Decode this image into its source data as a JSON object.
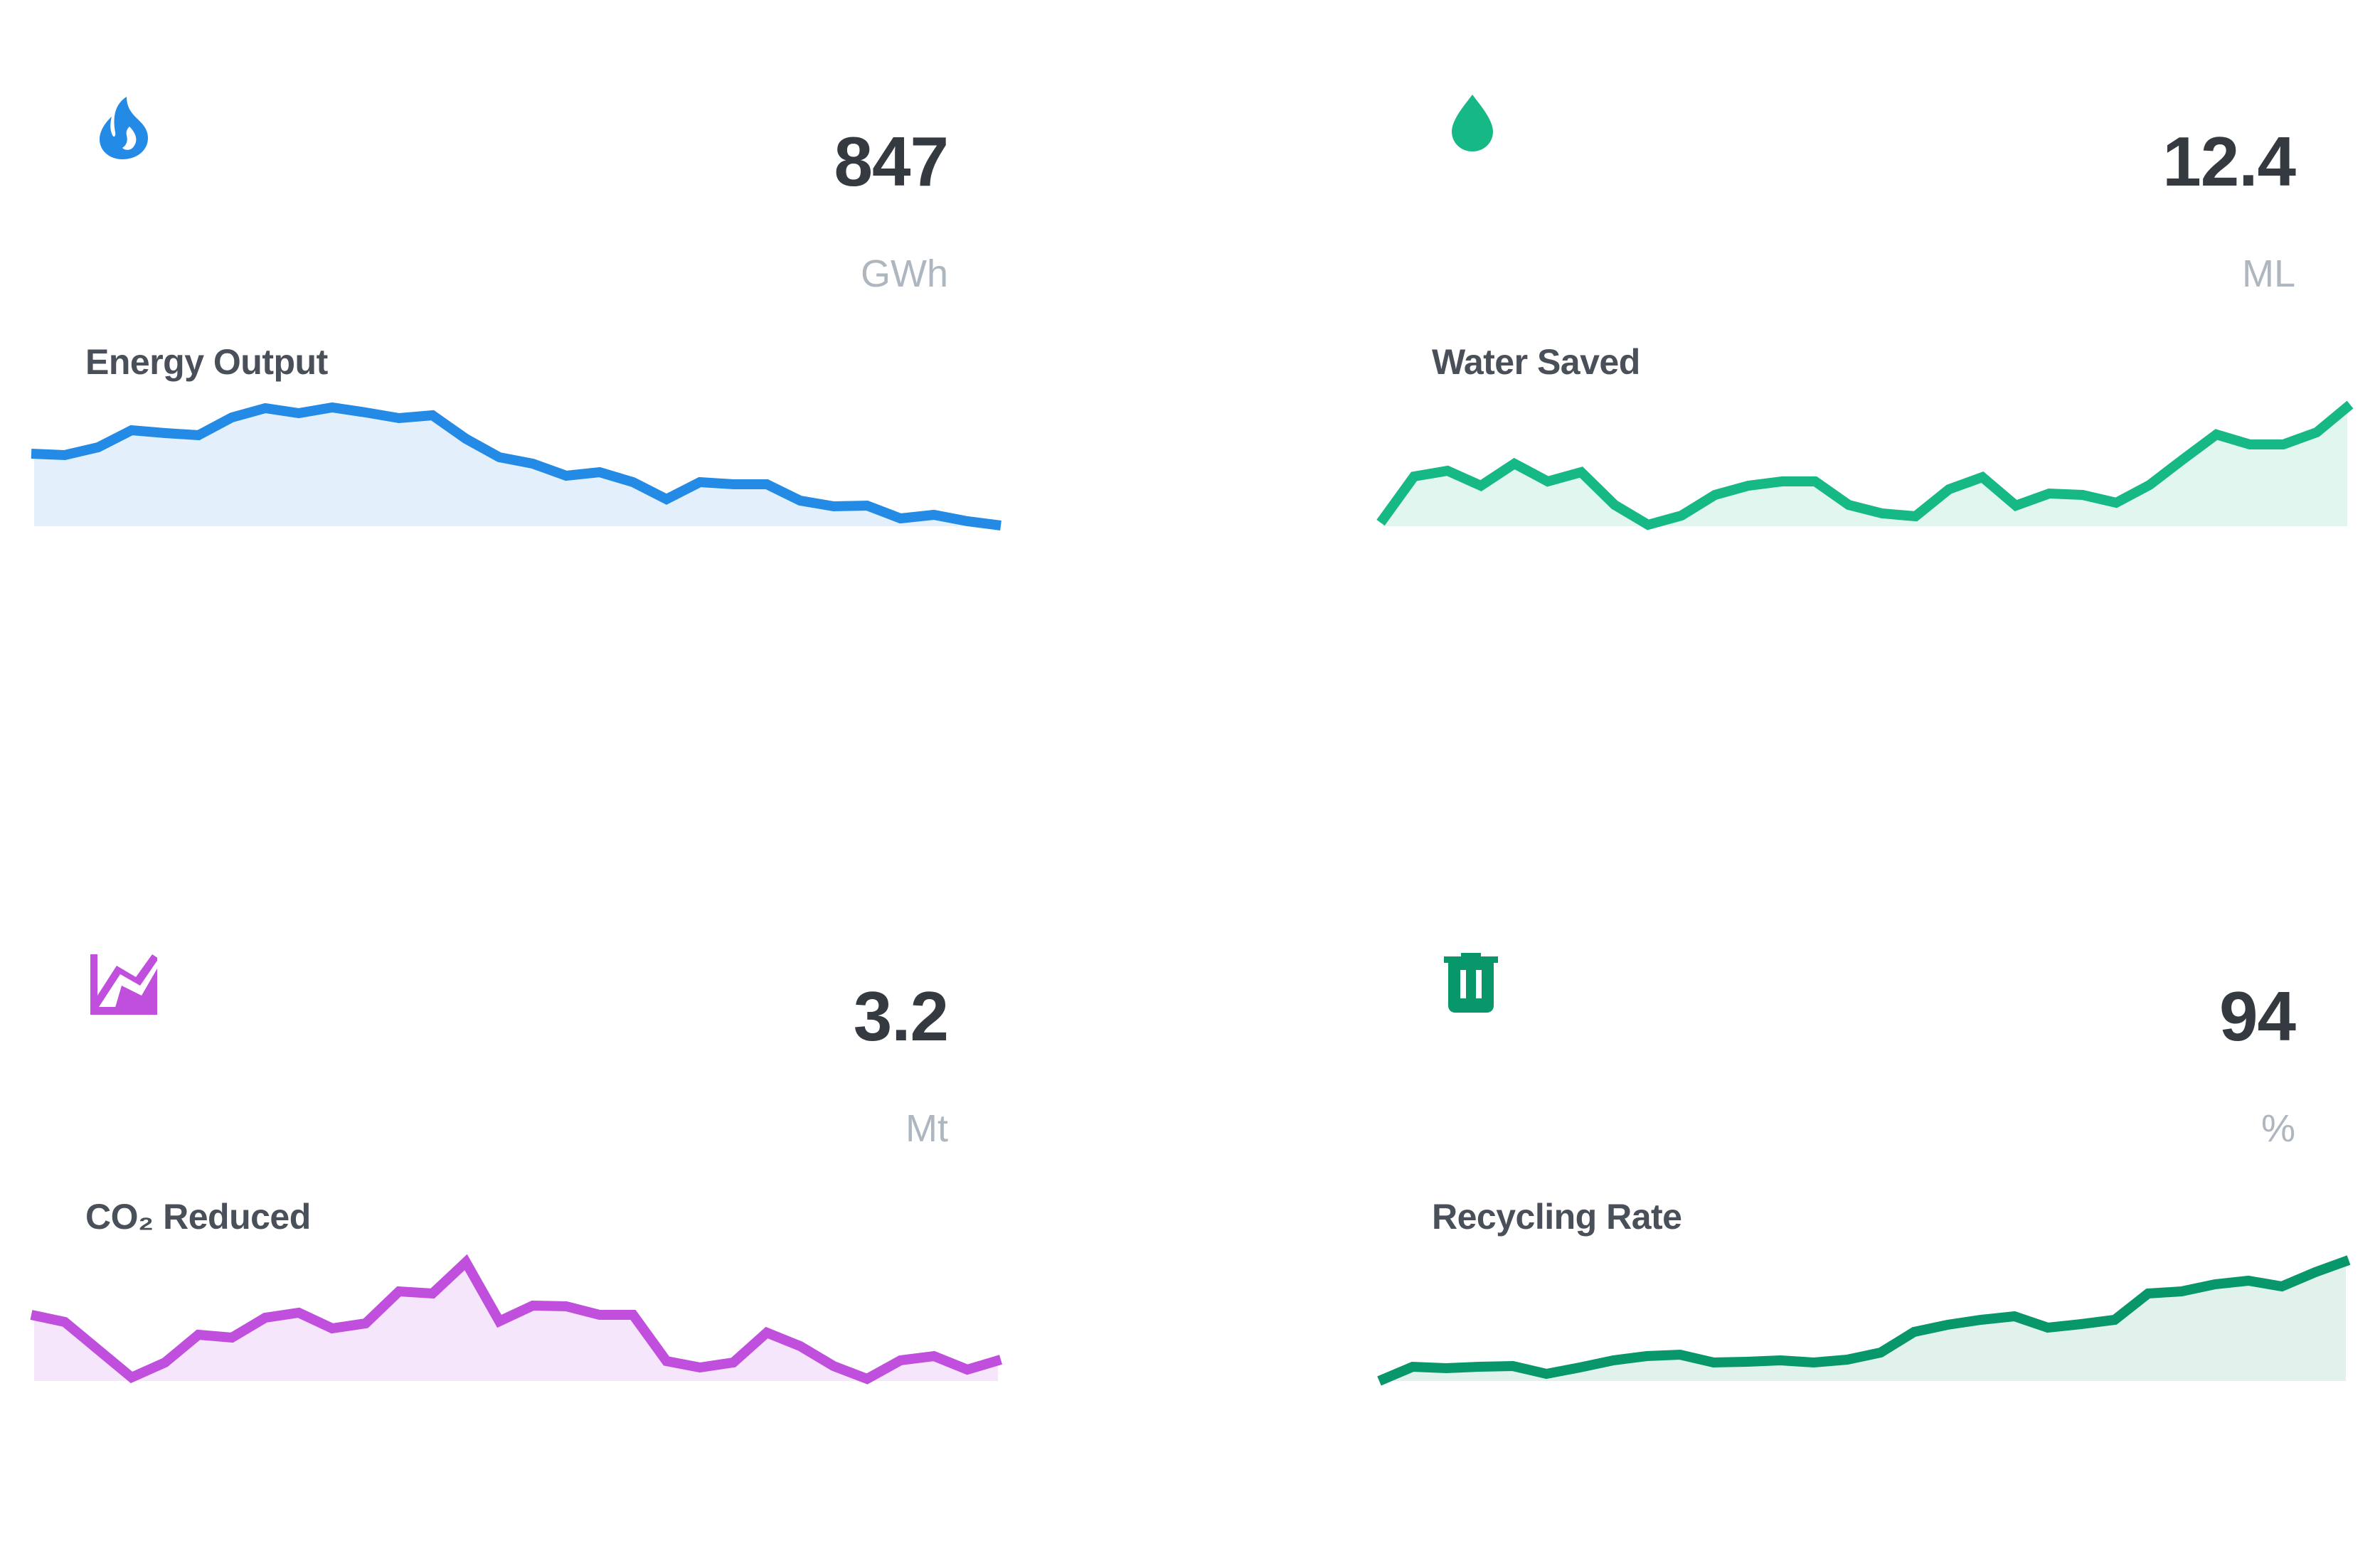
{
  "cards": [
    {
      "label": "Energy Output",
      "value": "847",
      "unit": "GWh",
      "icon": "flame-icon",
      "color": "#238be6",
      "fill": "#e3f0fc"
    },
    {
      "label": "Water Saved",
      "value": "12.4",
      "unit": "ML",
      "icon": "water-drop-icon",
      "color": "#16b886",
      "fill": "#e1f6ee"
    },
    {
      "label": "CO₂ Reduced",
      "value": "3.2",
      "unit": "Mt",
      "icon": "area-chart-icon",
      "color": "#bf4fdc",
      "fill": "#f6e6fb"
    },
    {
      "label": "Recycling Rate",
      "value": "94",
      "unit": "%",
      "icon": "trash-icon",
      "color": "#08976b",
      "fill": "#e0f2eb"
    }
  ],
  "chart_data": [
    {
      "type": "area",
      "title": "Energy Output",
      "value_label": "847 GWh",
      "x": [
        1,
        2,
        3,
        4,
        5,
        6,
        7,
        8,
        9,
        10,
        11,
        12,
        13,
        14,
        15,
        16,
        17,
        18,
        19,
        20,
        21,
        22,
        23,
        24,
        25,
        26,
        27,
        28,
        29,
        30
      ],
      "values": [
        102,
        100,
        111,
        135,
        131,
        128,
        153,
        166,
        159,
        167,
        160,
        152,
        156,
        123,
        97,
        88,
        71,
        76,
        62,
        38,
        62,
        59,
        59,
        36,
        28,
        29,
        11,
        16,
        7,
        1
      ],
      "xlabel": "",
      "ylabel": "",
      "grid": false,
      "legend": "none"
    },
    {
      "type": "area",
      "title": "Water Saved",
      "value_label": "12.4 ML",
      "x": [
        1,
        2,
        3,
        4,
        5,
        6,
        7,
        8,
        9,
        10,
        11,
        12,
        13,
        14,
        15,
        16,
        17,
        18,
        19,
        20,
        21,
        22,
        23,
        24,
        25,
        26,
        27,
        28,
        29,
        30
      ],
      "values": [
        5,
        70,
        78,
        57,
        88,
        63,
        76,
        30,
        2,
        15,
        44,
        57,
        63,
        63,
        30,
        18,
        14,
        52,
        69,
        29,
        46,
        44,
        33,
        58,
        94,
        129,
        115,
        115,
        132,
        171
      ],
      "xlabel": "",
      "ylabel": "",
      "grid": false,
      "legend": "none"
    },
    {
      "type": "area",
      "title": "CO₂ Reduced",
      "value_label": "3.2 Mt",
      "x": [
        1,
        2,
        3,
        4,
        5,
        6,
        7,
        8,
        9,
        10,
        11,
        12,
        13,
        14,
        15,
        16,
        17,
        18,
        19,
        20,
        21,
        22,
        23,
        24,
        25,
        26,
        27,
        28,
        29,
        30
      ],
      "values": [
        93,
        83,
        44,
        5,
        26,
        65,
        61,
        89,
        96,
        74,
        81,
        126,
        123,
        167,
        84,
        106,
        105,
        93,
        93,
        28,
        19,
        26,
        68,
        49,
        21,
        3,
        29,
        35,
        16,
        30
      ],
      "xlabel": "",
      "ylabel": "",
      "grid": false,
      "legend": "none"
    },
    {
      "type": "area",
      "title": "Recycling Rate",
      "value_label": "94 %",
      "x": [
        1,
        2,
        3,
        4,
        5,
        6,
        7,
        8,
        9,
        10,
        11,
        12,
        13,
        14,
        15,
        16,
        17,
        18,
        19,
        20,
        21,
        22,
        23,
        24,
        25,
        26,
        27,
        28,
        29,
        30
      ],
      "values": [
        0,
        20,
        18,
        20,
        21,
        10,
        19,
        29,
        35,
        37,
        26,
        27,
        29,
        26,
        30,
        40,
        69,
        79,
        86,
        91,
        75,
        80,
        86,
        123,
        126,
        136,
        141,
        133,
        153,
        170
      ],
      "xlabel": "",
      "ylabel": "",
      "grid": false,
      "legend": "none"
    }
  ]
}
